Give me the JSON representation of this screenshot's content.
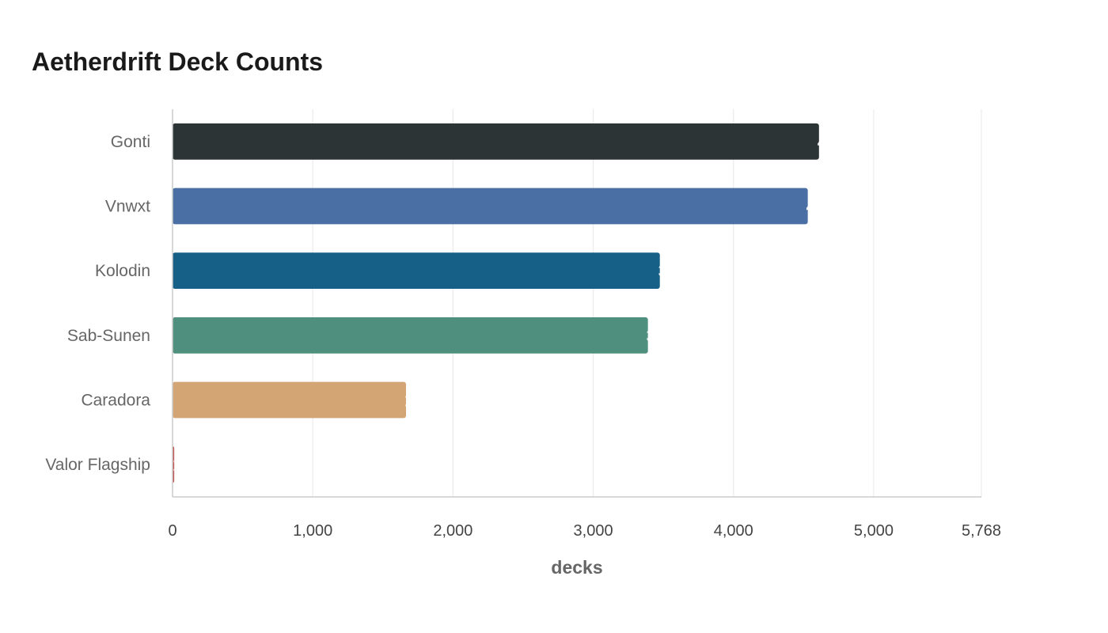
{
  "chart_data": {
    "type": "bar",
    "orientation": "horizontal",
    "title": "Aetherdrift Deck Counts",
    "xlabel": "decks",
    "ylabel": "",
    "categories": [
      "Gonti",
      "Vnwxt",
      "Kolodin",
      "Sab-Sunen",
      "Caradora",
      "Valor Flagship"
    ],
    "values": [
      4610,
      4530,
      3475,
      3390,
      1665,
      12
    ],
    "colors": [
      "#2d3436",
      "#4a6fa5",
      "#166088",
      "#4f8f7d",
      "#d4a574",
      "#c0504d"
    ],
    "xlim": [
      0,
      5768
    ],
    "x_ticks": [
      0,
      1000,
      2000,
      3000,
      4000,
      5000,
      5768
    ],
    "x_tick_labels": [
      "0",
      "1,000",
      "2,000",
      "3,000",
      "4,000",
      "5,000",
      "5,768"
    ],
    "grid": true,
    "legend": "none"
  }
}
